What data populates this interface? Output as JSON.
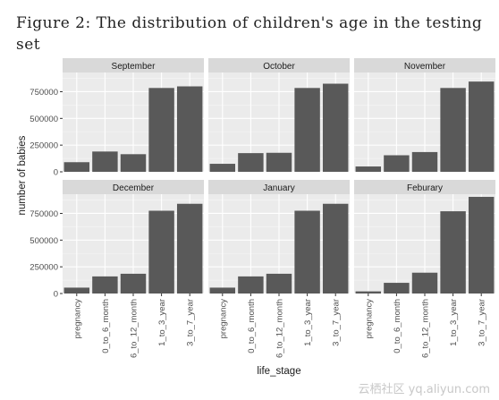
{
  "caption": "Figure 2: The distribution of children's age in the testing set",
  "watermark": "云栖社区 yq.aliyun.com",
  "chart_data": {
    "type": "bar",
    "xlabel": "life_stage",
    "ylabel": "number of babies",
    "categories": [
      "pregnancy",
      "0_to_6_month",
      "6_to_12_month",
      "1_to_3_year",
      "3_to_7_year"
    ],
    "ylim": [
      0,
      930000
    ],
    "yticks": [
      0,
      250000,
      500000,
      750000
    ],
    "ytick_labels": [
      "0",
      "250000",
      "500000",
      "750000"
    ],
    "bar_color": "#595959",
    "panel_bg": "#ebebeb",
    "strip_bg": "#d9d9d9",
    "grid": true,
    "facets": [
      {
        "name": "September",
        "values": [
          90000,
          190000,
          165000,
          785000,
          800000
        ]
      },
      {
        "name": "October",
        "values": [
          75000,
          175000,
          178000,
          785000,
          825000
        ]
      },
      {
        "name": "November",
        "values": [
          50000,
          155000,
          185000,
          785000,
          845000
        ]
      },
      {
        "name": "December",
        "values": [
          55000,
          160000,
          185000,
          775000,
          840000
        ]
      },
      {
        "name": "January",
        "values": [
          55000,
          160000,
          185000,
          775000,
          840000
        ]
      },
      {
        "name": "Feburary",
        "values": [
          20000,
          100000,
          195000,
          770000,
          905000
        ]
      }
    ]
  }
}
